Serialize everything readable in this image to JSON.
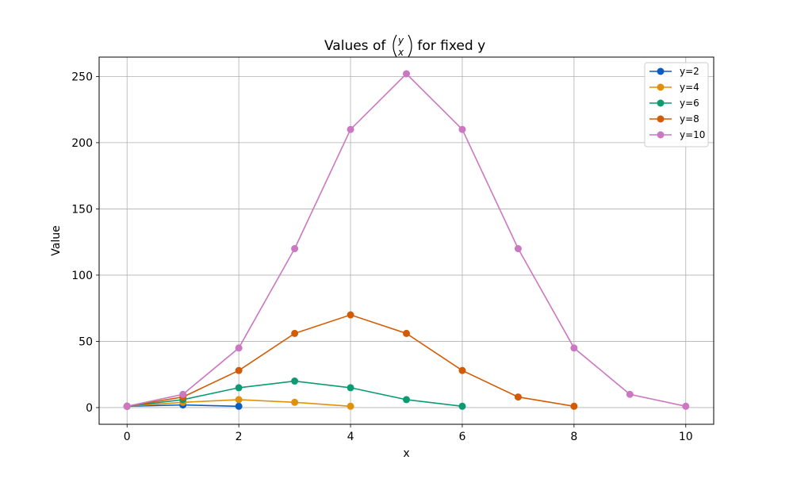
{
  "chart_data": {
    "type": "line",
    "title_prefix": "Values of ",
    "title_binom_top": "y",
    "title_binom_bottom": "x",
    "title_suffix": " for fixed y",
    "xlabel": "x",
    "ylabel": "Value",
    "xlim": [
      -0.5,
      10.5
    ],
    "ylim": [
      -12.6,
      264.6
    ],
    "xticks": [
      0,
      2,
      4,
      6,
      8,
      10
    ],
    "yticks": [
      0,
      50,
      100,
      150,
      200,
      250
    ],
    "grid": true,
    "legend_position": "top-right",
    "series": [
      {
        "name": "y=2",
        "color": "#0b5cc7",
        "x": [
          0,
          1,
          2
        ],
        "values": [
          1,
          2,
          1
        ]
      },
      {
        "name": "y=4",
        "color": "#e0900b",
        "x": [
          0,
          1,
          2,
          3,
          4
        ],
        "values": [
          1,
          4,
          6,
          4,
          1
        ]
      },
      {
        "name": "y=6",
        "color": "#0b9b73",
        "x": [
          0,
          1,
          2,
          3,
          4,
          5,
          6
        ],
        "values": [
          1,
          6,
          15,
          20,
          15,
          6,
          1
        ]
      },
      {
        "name": "y=8",
        "color": "#d35b06",
        "x": [
          0,
          1,
          2,
          3,
          4,
          5,
          6,
          7,
          8
        ],
        "values": [
          1,
          8,
          28,
          56,
          70,
          56,
          28,
          8,
          1
        ]
      },
      {
        "name": "y=10",
        "color": "#cb77c1",
        "x": [
          0,
          1,
          2,
          3,
          4,
          5,
          6,
          7,
          8,
          9,
          10
        ],
        "values": [
          1,
          10,
          45,
          120,
          210,
          252,
          210,
          120,
          45,
          10,
          1
        ]
      }
    ]
  }
}
